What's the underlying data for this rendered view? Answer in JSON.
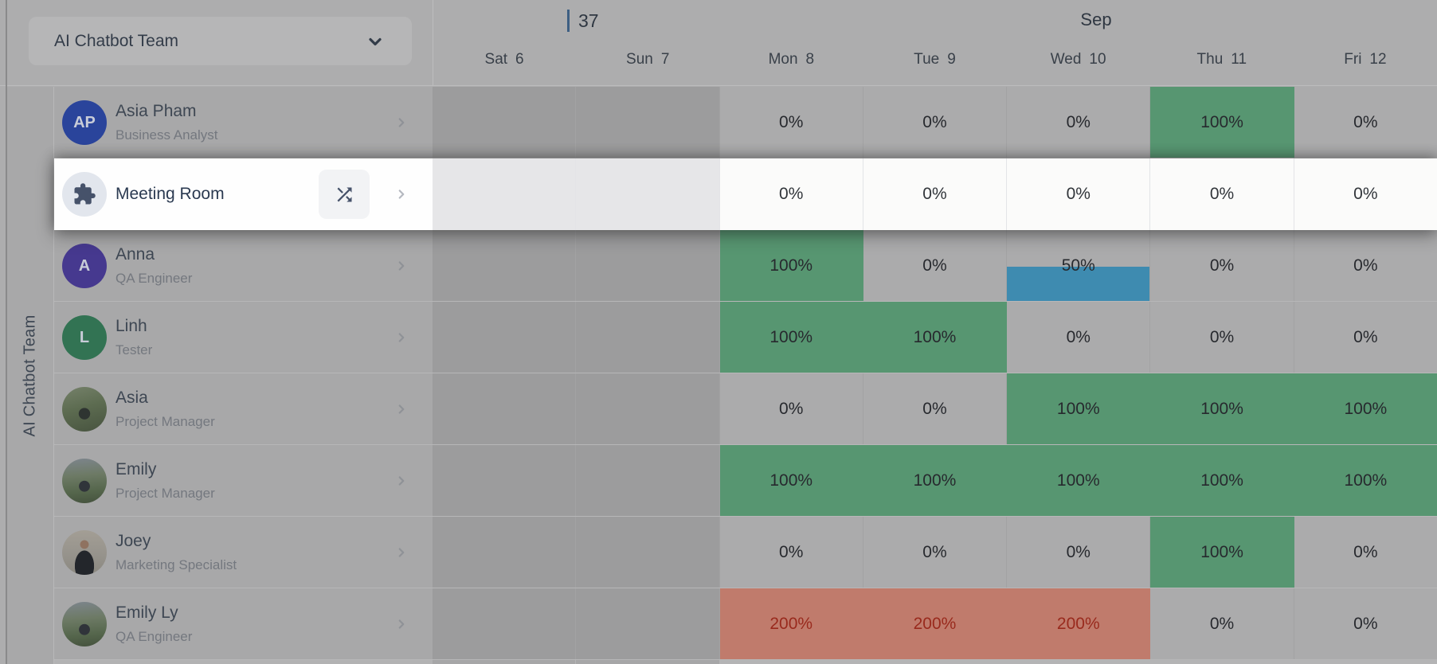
{
  "palette": {
    "bg_dim": "#adadae",
    "sidebar_dim": "#a8a8a9",
    "weekend_dim": "#9c9c9d",
    "zero_dim": "#ababac",
    "green_dim": "#579671",
    "blue_dim": "#3e8bb0",
    "red_dim": "#c07b6c",
    "red_text_dim": "#992a1d",
    "pct_dim": "#27292e",
    "name_dim": "#3e4753",
    "role_dim": "#74787f",
    "daylabel_dim": "#394049",
    "row_border_dim": "#b7b7b8",
    "cell_border_dim": "#a2a2a3",
    "grid_sep_dim": "#bcbcbd",
    "rail_edge": "#8a8a8b",
    "rail_border": "#b9b9ba",
    "dropdown_bg": "#b6b6b7",
    "dropdown_text": "#333c49",
    "week_bar": "#3d5f83",
    "week_text": "#2f3742",
    "chev_dim": "#8f9297",
    "highlight_bg": "#fefefe",
    "weekend_hl": "#e6e6e8",
    "cell_hl": "#fbfbfa",
    "cell_border_hl": "#e3e4e7",
    "name_hl": "#2b3a51",
    "pct_hl": "#31353a",
    "chev_hl": "#b5b9c0",
    "puzzle_circle": "#e2e6ed",
    "icon_slate": "#46526a",
    "btn_bg": "#f2f3f5",
    "avatar_text": "#c8ccd8",
    "sliver_side": "#b2b2b3",
    "sliver_cell": "#b4b4b5",
    "sliver_weekend": "#a6a6a7"
  },
  "header": {
    "team_selector": {
      "label": "AI Chatbot Team",
      "icon": "chevron-down-icon"
    },
    "week_number": "37",
    "month_label": "Sep",
    "days": [
      {
        "name": "Sat",
        "date": "6",
        "weekend": true
      },
      {
        "name": "Sun",
        "date": "7",
        "weekend": true
      },
      {
        "name": "Mon",
        "date": "8",
        "weekend": false
      },
      {
        "name": "Tue",
        "date": "9",
        "weekend": false
      },
      {
        "name": "Wed",
        "date": "10",
        "weekend": false
      },
      {
        "name": "Thu",
        "date": "11",
        "weekend": false
      },
      {
        "name": "Fri",
        "date": "12",
        "weekend": false
      }
    ]
  },
  "sidebar": {
    "group_label": "AI Chatbot Team"
  },
  "rows": [
    {
      "type": "member",
      "name": "Asia Pham",
      "role": "Business Analyst",
      "highlighted": false,
      "avatar": {
        "kind": "initials",
        "text": "AP",
        "bg": "#2a449b"
      },
      "cells": [
        {
          "day": "Sat",
          "weekend": true
        },
        {
          "day": "Sun",
          "weekend": true
        },
        {
          "day": "Mon",
          "value": "0%",
          "state": "zero"
        },
        {
          "day": "Tue",
          "value": "0%",
          "state": "zero"
        },
        {
          "day": "Wed",
          "value": "0%",
          "state": "zero"
        },
        {
          "day": "Thu",
          "value": "100%",
          "state": "full"
        },
        {
          "day": "Fri",
          "value": "0%",
          "state": "zero"
        }
      ]
    },
    {
      "type": "resource",
      "name": "Meeting Room",
      "role": "",
      "highlighted": true,
      "avatar": {
        "kind": "icon",
        "icon": "puzzle-icon"
      },
      "action_icon": "shuffle-icon",
      "cells": [
        {
          "day": "Sat",
          "weekend": true
        },
        {
          "day": "Sun",
          "weekend": true
        },
        {
          "day": "Mon",
          "value": "0%",
          "state": "zero"
        },
        {
          "day": "Tue",
          "value": "0%",
          "state": "zero"
        },
        {
          "day": "Wed",
          "value": "0%",
          "state": "zero"
        },
        {
          "day": "Thu",
          "value": "0%",
          "state": "zero"
        },
        {
          "day": "Fri",
          "value": "0%",
          "state": "zero"
        }
      ]
    },
    {
      "type": "member",
      "name": "Anna",
      "role": "QA Engineer",
      "highlighted": false,
      "avatar": {
        "kind": "initials",
        "text": "A",
        "bg": "#46398f"
      },
      "cells": [
        {
          "day": "Sat",
          "weekend": true
        },
        {
          "day": "Sun",
          "weekend": true
        },
        {
          "day": "Mon",
          "value": "100%",
          "state": "full"
        },
        {
          "day": "Tue",
          "value": "0%",
          "state": "zero"
        },
        {
          "day": "Wed",
          "value": "50%",
          "state": "half"
        },
        {
          "day": "Thu",
          "value": "0%",
          "state": "zero"
        },
        {
          "day": "Fri",
          "value": "0%",
          "state": "zero"
        }
      ]
    },
    {
      "type": "member",
      "name": "Linh",
      "role": "Tester",
      "highlighted": false,
      "avatar": {
        "kind": "initials",
        "text": "L",
        "bg": "#327353"
      },
      "cells": [
        {
          "day": "Sat",
          "weekend": true
        },
        {
          "day": "Sun",
          "weekend": true
        },
        {
          "day": "Mon",
          "value": "100%",
          "state": "full"
        },
        {
          "day": "Tue",
          "value": "100%",
          "state": "full"
        },
        {
          "day": "Wed",
          "value": "0%",
          "state": "zero"
        },
        {
          "day": "Thu",
          "value": "0%",
          "state": "zero"
        },
        {
          "day": "Fri",
          "value": "0%",
          "state": "zero"
        }
      ]
    },
    {
      "type": "member",
      "name": "Asia",
      "role": "Project Manager",
      "highlighted": false,
      "avatar": {
        "kind": "photo",
        "variant": "photo-trees"
      },
      "cells": [
        {
          "day": "Sat",
          "weekend": true
        },
        {
          "day": "Sun",
          "weekend": true
        },
        {
          "day": "Mon",
          "value": "0%",
          "state": "zero"
        },
        {
          "day": "Tue",
          "value": "0%",
          "state": "zero"
        },
        {
          "day": "Wed",
          "value": "100%",
          "state": "full"
        },
        {
          "day": "Thu",
          "value": "100%",
          "state": "full"
        },
        {
          "day": "Fri",
          "value": "100%",
          "state": "full"
        }
      ]
    },
    {
      "type": "member",
      "name": "Emily",
      "role": "Project Manager",
      "highlighted": false,
      "avatar": {
        "kind": "photo",
        "variant": "photo-mountain"
      },
      "cells": [
        {
          "day": "Sat",
          "weekend": true
        },
        {
          "day": "Sun",
          "weekend": true
        },
        {
          "day": "Mon",
          "value": "100%",
          "state": "full"
        },
        {
          "day": "Tue",
          "value": "100%",
          "state": "full"
        },
        {
          "day": "Wed",
          "value": "100%",
          "state": "full"
        },
        {
          "day": "Thu",
          "value": "100%",
          "state": "full"
        },
        {
          "day": "Fri",
          "value": "100%",
          "state": "full"
        }
      ]
    },
    {
      "type": "member",
      "name": "Joey",
      "role": "Marketing Specialist",
      "highlighted": false,
      "avatar": {
        "kind": "photo",
        "variant": "photo-portrait"
      },
      "cells": [
        {
          "day": "Sat",
          "weekend": true
        },
        {
          "day": "Sun",
          "weekend": true
        },
        {
          "day": "Mon",
          "value": "0%",
          "state": "zero"
        },
        {
          "day": "Tue",
          "value": "0%",
          "state": "zero"
        },
        {
          "day": "Wed",
          "value": "0%",
          "state": "zero"
        },
        {
          "day": "Thu",
          "value": "100%",
          "state": "full"
        },
        {
          "day": "Fri",
          "value": "0%",
          "state": "zero"
        }
      ]
    },
    {
      "type": "member",
      "name": "Emily Ly",
      "role": "QA Engineer",
      "highlighted": false,
      "avatar": {
        "kind": "photo",
        "variant": "photo-mountain"
      },
      "cells": [
        {
          "day": "Sat",
          "weekend": true
        },
        {
          "day": "Sun",
          "weekend": true
        },
        {
          "day": "Mon",
          "value": "200%",
          "state": "over"
        },
        {
          "day": "Tue",
          "value": "200%",
          "state": "over"
        },
        {
          "day": "Wed",
          "value": "200%",
          "state": "over"
        },
        {
          "day": "Thu",
          "value": "0%",
          "state": "zero"
        },
        {
          "day": "Fri",
          "value": "0%",
          "state": "zero"
        }
      ]
    }
  ]
}
